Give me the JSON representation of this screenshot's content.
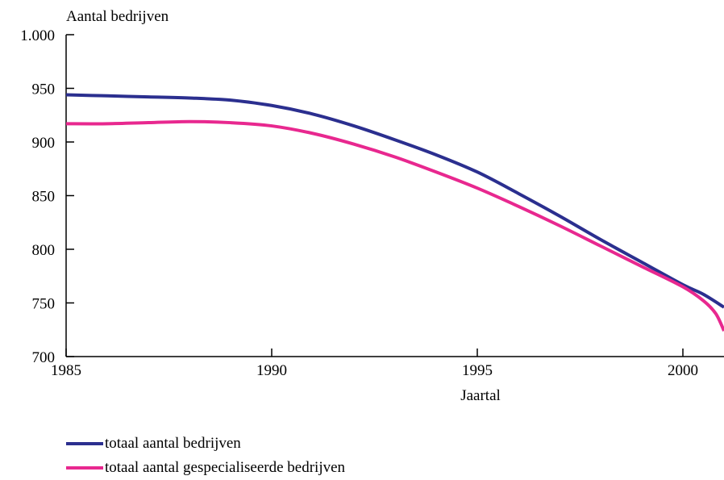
{
  "chart_data": {
    "type": "line",
    "ylabel": "Aantal bedrijven",
    "xlabel": "Jaartal",
    "xlim": [
      1985,
      2001
    ],
    "ylim": [
      700,
      1000
    ],
    "x_ticks": [
      "1985",
      "1990",
      "1995",
      "2000"
    ],
    "y_ticks": [
      "700",
      "750",
      "800",
      "850",
      "900",
      "950",
      "1.000"
    ],
    "grid": false,
    "legend_position": "bottom",
    "series": [
      {
        "name": "totaal aantal bedrijven",
        "color": "#2b2f8f",
        "x": [
          1985,
          1986,
          1987,
          1988,
          1989,
          1990,
          1991,
          1992,
          1993,
          1994,
          1995,
          1996,
          1997,
          1998,
          1999,
          2000,
          2000.5,
          2001
        ],
        "y": [
          944,
          943,
          942,
          941,
          939,
          934,
          926,
          915,
          902,
          888,
          872,
          852,
          831,
          809,
          788,
          767,
          758,
          746
        ]
      },
      {
        "name": "totaal aantal gespecialiseerde bedrijven",
        "color": "#e8288f",
        "x": [
          1985,
          1986,
          1987,
          1988,
          1989,
          1990,
          1991,
          1992,
          1993,
          1994,
          1995,
          1996,
          1997,
          1998,
          1999,
          2000,
          2000.5,
          2000.8,
          2001
        ],
        "y": [
          917,
          917,
          918,
          919,
          918,
          915,
          908,
          898,
          886,
          872,
          857,
          840,
          822,
          803,
          784,
          765,
          752,
          740,
          724
        ]
      }
    ]
  }
}
